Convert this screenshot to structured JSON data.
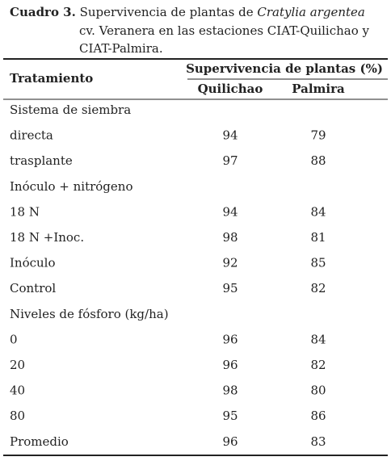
{
  "caption": {
    "label": "Cuadro 3.",
    "lines": [
      "Supervivencia de plantas de",
      "Cratylia argentea",
      "cv. Veranera en las estaciones CIAT-Quilichao y",
      "CIAT-Palmira."
    ]
  },
  "table": {
    "header": {
      "row_label": "Tratamiento",
      "group": "Supervivencia de plantas (%)",
      "columns": [
        "Quilichao",
        "Palmira"
      ]
    },
    "rows": [
      [
        "Sistema de siembra"
      ],
      [
        "directa",
        "94",
        "79"
      ],
      [
        "trasplante",
        "97",
        "88"
      ],
      [
        "Inóculo + nitrógeno"
      ],
      [
        "18 N",
        "94",
        "84"
      ],
      [
        "18 N +Inoc.",
        "98",
        "81"
      ],
      [
        "Inóculo",
        "92",
        "85"
      ],
      [
        "Control",
        "95",
        "82"
      ],
      [
        "Niveles de fósforo (kg/ha)"
      ],
      [
        "0",
        "96",
        "84"
      ],
      [
        "20",
        "96",
        "82"
      ],
      [
        "40",
        "98",
        "80"
      ],
      [
        "80",
        "95",
        "86"
      ],
      [
        "Promedio",
        "96",
        "83"
      ]
    ]
  }
}
